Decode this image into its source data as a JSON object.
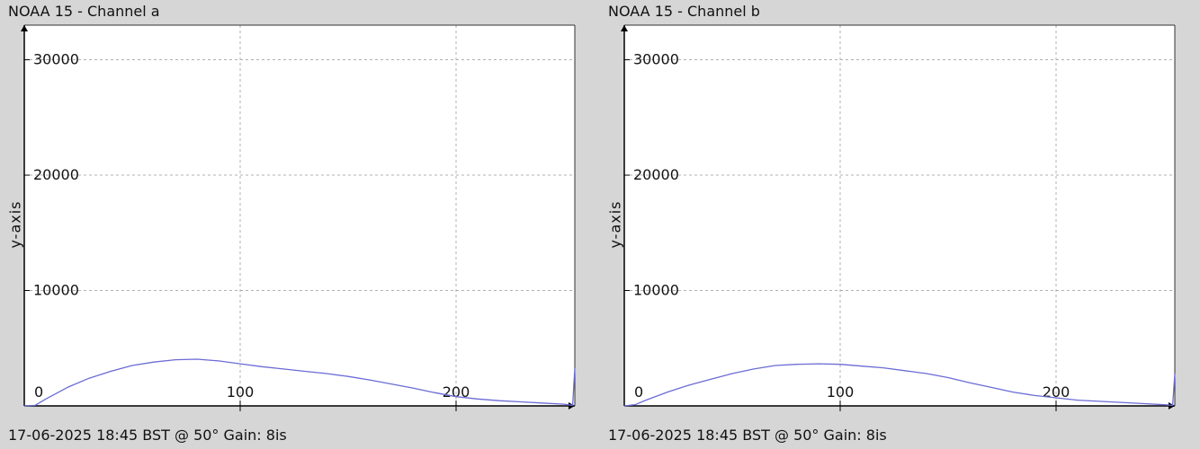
{
  "chart_data": [
    {
      "type": "line",
      "title": "NOAA 15 - Channel a",
      "xlabel": "",
      "ylabel": "y-axis",
      "footer": "17-06-2025 18:45 BST @ 50° Gain: 8",
      "footer_symbol": "is",
      "xlim": [
        0,
        255
      ],
      "ylim": [
        0,
        33000
      ],
      "xticks": [
        0,
        100,
        200
      ],
      "yticks": [
        0,
        10000,
        20000,
        30000
      ],
      "grid": true,
      "line_color": "#6b6bd6",
      "series": [
        {
          "x": [
            0,
            5,
            10,
            20,
            30,
            40,
            50,
            60,
            70,
            80,
            90,
            100,
            110,
            120,
            130,
            140,
            150,
            160,
            170,
            180,
            190,
            200,
            210,
            220,
            230,
            240,
            250,
            254,
            255
          ],
          "values": [
            0,
            50,
            600,
            1600,
            2400,
            3000,
            3500,
            3800,
            4000,
            4050,
            3900,
            3650,
            3400,
            3200,
            3000,
            2800,
            2550,
            2250,
            1900,
            1550,
            1150,
            800,
            600,
            450,
            350,
            250,
            150,
            50,
            3300
          ]
        }
      ]
    },
    {
      "type": "line",
      "title": "NOAA 15 - Channel b",
      "xlabel": "",
      "ylabel": "y-axis",
      "footer": "17-06-2025 18:45 BST @ 50° Gain: 8",
      "footer_symbol": "is",
      "xlim": [
        0,
        255
      ],
      "ylim": [
        0,
        33000
      ],
      "xticks": [
        0,
        100,
        200
      ],
      "yticks": [
        0,
        10000,
        20000,
        30000
      ],
      "grid": true,
      "line_color": "#6b6bd6",
      "series": [
        {
          "x": [
            0,
            5,
            10,
            20,
            30,
            40,
            50,
            60,
            70,
            80,
            90,
            100,
            110,
            120,
            130,
            140,
            150,
            160,
            170,
            180,
            190,
            200,
            210,
            220,
            230,
            240,
            250,
            254,
            255
          ],
          "values": [
            0,
            100,
            500,
            1200,
            1800,
            2300,
            2800,
            3200,
            3500,
            3600,
            3650,
            3600,
            3450,
            3300,
            3050,
            2800,
            2450,
            2000,
            1600,
            1200,
            900,
            700,
            500,
            400,
            300,
            200,
            100,
            50,
            2800
          ]
        }
      ]
    }
  ]
}
